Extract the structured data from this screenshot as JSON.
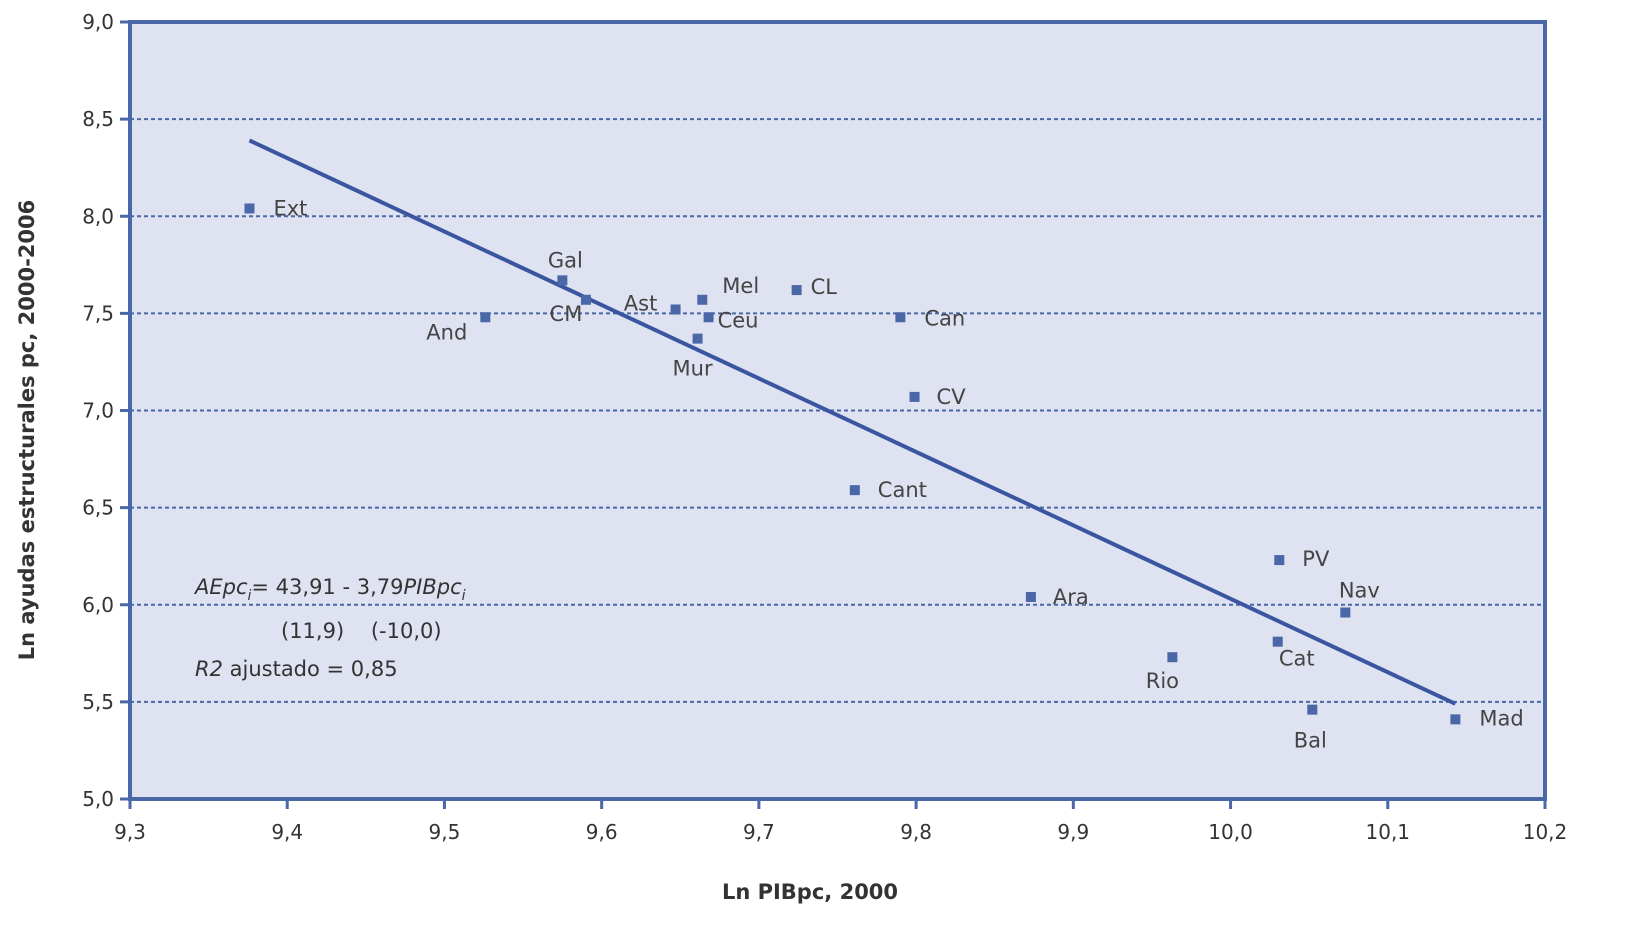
{
  "chart_data": {
    "type": "scatter",
    "title": "",
    "xlabel": "Ln PIBpc, 2000",
    "ylabel": "Ln ayudas estructurales pc, 2000-2006",
    "xlim": [
      9.3,
      10.2
    ],
    "ylim": [
      5.0,
      9.0
    ],
    "x_ticks": [
      "9,3",
      "9,4",
      "9,5",
      "9,6",
      "9,7",
      "9,8",
      "9,9",
      "10,0",
      "10,1",
      "10,2"
    ],
    "y_ticks": [
      "9,0",
      "8,5",
      "8,0",
      "7,5",
      "7,0",
      "6,5",
      "6,0",
      "5,5",
      "5,0"
    ],
    "grid": "horizontal dashed",
    "points": [
      {
        "label": "Ext",
        "x": 9.376,
        "y": 8.04
      },
      {
        "label": "And",
        "x": 9.526,
        "y": 7.48
      },
      {
        "label": "Gal",
        "x": 9.575,
        "y": 7.67
      },
      {
        "label": "CM",
        "x": 9.59,
        "y": 7.57
      },
      {
        "label": "Ast",
        "x": 9.647,
        "y": 7.52
      },
      {
        "label": "Mel",
        "x": 9.664,
        "y": 7.57
      },
      {
        "label": "Ceu",
        "x": 9.668,
        "y": 7.48
      },
      {
        "label": "Mur",
        "x": 9.661,
        "y": 7.37
      },
      {
        "label": "CL",
        "x": 9.724,
        "y": 7.62
      },
      {
        "label": "Can",
        "x": 9.79,
        "y": 7.48
      },
      {
        "label": "CV",
        "x": 9.799,
        "y": 7.07
      },
      {
        "label": "Cant",
        "x": 9.761,
        "y": 6.59
      },
      {
        "label": "Ara",
        "x": 9.873,
        "y": 6.04
      },
      {
        "label": "Rio",
        "x": 9.963,
        "y": 5.73
      },
      {
        "label": "PV",
        "x": 10.031,
        "y": 6.23
      },
      {
        "label": "Cat",
        "x": 10.03,
        "y": 5.81
      },
      {
        "label": "Nav",
        "x": 10.073,
        "y": 5.96
      },
      {
        "label": "Bal",
        "x": 10.052,
        "y": 5.46
      },
      {
        "label": "Mad",
        "x": 10.143,
        "y": 5.41
      }
    ],
    "trendline": {
      "x": [
        9.376,
        10.143
      ],
      "y": [
        8.39,
        5.49
      ]
    },
    "annotations": {
      "equation_lhs": "AEpc",
      "equation_sub1": "i",
      "equation_mid": "= 43,91 - 3,79",
      "equation_var": "PIBpc",
      "equation_sub2": "i",
      "t_stats": "(11,9)    (-10,0)",
      "r2_label": "R2",
      "r2_value": " ajustado = 0,85"
    },
    "colors": {
      "plot_background": "#dfe3f1",
      "axis": "#4a67a7",
      "grid": "#4a67a7",
      "marker": "#4a67a7",
      "trendline": "#3a56a0"
    }
  }
}
